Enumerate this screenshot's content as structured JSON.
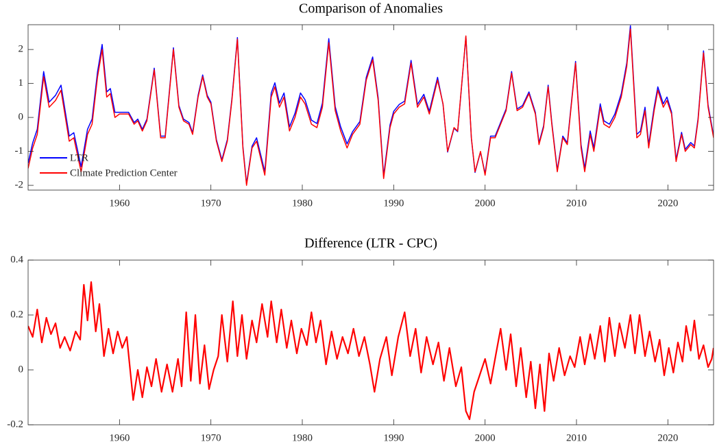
{
  "chart_data": [
    {
      "type": "line",
      "title": "Comparison of Anomalies",
      "x": [
        1950.0,
        1950.5,
        1951.0,
        1951.7,
        1952.3,
        1953.0,
        1953.6,
        1954.5,
        1955.0,
        1955.8,
        1956.5,
        1957.0,
        1957.6,
        1958.1,
        1958.6,
        1959.0,
        1959.5,
        1960.0,
        1961.0,
        1961.6,
        1962.0,
        1962.5,
        1963.0,
        1963.8,
        1964.5,
        1965.0,
        1965.9,
        1966.5,
        1967.0,
        1967.6,
        1968.0,
        1968.6,
        1969.1,
        1969.6,
        1970.0,
        1970.6,
        1971.2,
        1971.8,
        1972.3,
        1972.9,
        1973.5,
        1973.9,
        1974.5,
        1975.0,
        1975.9,
        1976.6,
        1977.0,
        1977.5,
        1978.0,
        1978.6,
        1979.2,
        1979.8,
        1980.3,
        1981.0,
        1981.6,
        1982.2,
        1982.9,
        1983.6,
        1984.2,
        1984.9,
        1985.5,
        1986.3,
        1987.0,
        1987.7,
        1988.3,
        1988.9,
        1989.6,
        1990.0,
        1990.6,
        1991.2,
        1991.9,
        1992.6,
        1993.3,
        1993.9,
        1994.8,
        1995.4,
        1995.9,
        1996.6,
        1997.0,
        1997.9,
        1998.5,
        1998.9,
        1999.5,
        2000.0,
        2000.6,
        2001.1,
        2001.7,
        2002.3,
        2002.9,
        2003.5,
        2004.1,
        2004.8,
        2005.5,
        2005.9,
        2006.4,
        2006.9,
        2007.3,
        2007.9,
        2008.5,
        2009.0,
        2009.9,
        2010.5,
        2010.9,
        2011.5,
        2011.9,
        2012.6,
        2013.0,
        2013.6,
        2014.2,
        2014.9,
        2015.5,
        2015.9,
        2016.6,
        2017.0,
        2017.5,
        2017.9,
        2018.5,
        2018.9,
        2019.5,
        2019.9,
        2020.4,
        2020.9,
        2021.5,
        2021.9,
        2022.5,
        2022.9,
        2023.3,
        2023.9,
        2024.4,
        2025.0
      ],
      "series": [
        {
          "name": "LTR",
          "color": "#0000ff",
          "values": [
            -1.35,
            -0.75,
            -0.35,
            1.35,
            0.45,
            0.65,
            0.95,
            -0.55,
            -0.45,
            -1.45,
            -0.35,
            -0.05,
            1.35,
            2.15,
            0.75,
            0.85,
            0.15,
            0.15,
            0.15,
            -0.15,
            -0.05,
            -0.35,
            -0.05,
            1.45,
            -0.55,
            -0.55,
            2.05,
            0.35,
            -0.05,
            -0.15,
            -0.45,
            0.65,
            1.25,
            0.65,
            0.45,
            -0.65,
            -1.25,
            -0.65,
            0.55,
            2.35,
            -0.85,
            -1.95,
            -0.85,
            -0.6,
            -1.6,
            0.72,
            1.02,
            0.42,
            0.72,
            -0.28,
            0.12,
            0.72,
            0.52,
            -0.08,
            -0.18,
            0.42,
            2.32,
            0.32,
            -0.28,
            -0.78,
            -0.42,
            -0.12,
            1.18,
            1.78,
            0.58,
            -1.72,
            -0.22,
            0.18,
            0.38,
            0.48,
            1.68,
            0.38,
            0.68,
            0.18,
            1.18,
            0.38,
            -1.02,
            -0.32,
            -0.42,
            2.38,
            -0.62,
            -1.62,
            -1.02,
            -1.65,
            -0.55,
            -0.55,
            -0.15,
            0.25,
            1.35,
            0.25,
            0.35,
            0.75,
            0.15,
            -0.75,
            -0.25,
            0.95,
            -0.15,
            -1.55,
            -0.55,
            -0.75,
            1.65,
            -0.8,
            -1.5,
            -0.4,
            -0.9,
            0.4,
            -0.1,
            -0.2,
            0.1,
            0.7,
            1.6,
            2.7,
            -0.5,
            -0.4,
            0.3,
            -0.8,
            0.3,
            0.9,
            0.4,
            0.6,
            0.16,
            -1.24,
            -0.44,
            -0.94,
            -0.74,
            -0.84,
            -0.04,
            1.96,
            0.36,
            -0.54
          ]
        },
        {
          "name": "Climate Prediction Center",
          "color": "#ff0000",
          "values": [
            -1.5,
            -0.9,
            -0.5,
            1.2,
            0.3,
            0.5,
            0.8,
            -0.7,
            -0.6,
            -1.6,
            -0.5,
            -0.2,
            1.2,
            2.0,
            0.6,
            0.7,
            0.0,
            0.1,
            0.1,
            -0.2,
            -0.1,
            -0.4,
            -0.1,
            1.4,
            -0.6,
            -0.6,
            2.0,
            0.3,
            -0.1,
            -0.2,
            -0.5,
            0.6,
            1.2,
            0.6,
            0.4,
            -0.7,
            -1.3,
            -0.7,
            0.5,
            2.3,
            -0.9,
            -2.0,
            -0.9,
            -0.7,
            -1.7,
            0.6,
            0.9,
            0.3,
            0.6,
            -0.4,
            0.0,
            0.6,
            0.4,
            -0.2,
            -0.3,
            0.3,
            2.2,
            0.2,
            -0.4,
            -0.9,
            -0.5,
            -0.2,
            1.1,
            1.7,
            0.5,
            -1.8,
            -0.3,
            0.1,
            0.3,
            0.4,
            1.6,
            0.3,
            0.6,
            0.1,
            1.1,
            0.4,
            -1.0,
            -0.3,
            -0.4,
            2.4,
            -0.6,
            -1.6,
            -1.0,
            -1.7,
            -0.6,
            -0.6,
            -0.2,
            0.2,
            1.3,
            0.2,
            0.3,
            0.7,
            0.1,
            -0.8,
            -0.3,
            0.9,
            -0.2,
            -1.6,
            -0.6,
            -0.8,
            1.6,
            -0.9,
            -1.6,
            -0.5,
            -1.0,
            0.3,
            -0.2,
            -0.3,
            0.0,
            0.6,
            1.5,
            2.6,
            -0.6,
            -0.5,
            0.2,
            -0.9,
            0.2,
            0.8,
            0.3,
            0.5,
            0.1,
            -1.3,
            -0.5,
            -1.0,
            -0.8,
            -0.9,
            -0.1,
            1.9,
            0.3,
            -0.6
          ]
        }
      ],
      "xlim": [
        1950,
        2025
      ],
      "xticks": [
        1960,
        1970,
        1980,
        1990,
        2000,
        2010,
        2020
      ],
      "ylim": [
        -2.14,
        2.73
      ],
      "yticks": [
        -2,
        -1,
        0,
        1,
        2
      ],
      "legend": "lower left"
    },
    {
      "type": "line",
      "title": "Difference (LTR - CPC)",
      "x": [
        1950.0,
        1950.5,
        1951.0,
        1951.5,
        1952.0,
        1952.5,
        1953.0,
        1953.5,
        1954.0,
        1954.6,
        1955.2,
        1955.7,
        1956.1,
        1956.5,
        1956.9,
        1957.4,
        1957.8,
        1958.3,
        1958.8,
        1959.3,
        1959.8,
        1960.3,
        1960.8,
        1961.5,
        1962.0,
        1962.5,
        1963.0,
        1963.5,
        1964.0,
        1964.6,
        1965.2,
        1965.8,
        1966.4,
        1966.8,
        1967.3,
        1967.8,
        1968.3,
        1968.8,
        1969.3,
        1969.8,
        1970.3,
        1970.8,
        1971.2,
        1971.8,
        1972.4,
        1972.9,
        1973.4,
        1973.9,
        1974.5,
        1975.0,
        1975.6,
        1976.2,
        1976.6,
        1977.2,
        1977.7,
        1978.3,
        1978.8,
        1979.4,
        1979.9,
        1980.5,
        1981.0,
        1981.5,
        1982.0,
        1982.6,
        1983.2,
        1983.8,
        1984.4,
        1985.0,
        1985.6,
        1986.2,
        1986.8,
        1987.4,
        1987.9,
        1988.5,
        1989.2,
        1989.8,
        1990.5,
        1991.2,
        1991.8,
        1992.4,
        1993.0,
        1993.6,
        1994.3,
        1994.9,
        1995.5,
        1996.1,
        1996.8,
        1997.4,
        1997.9,
        1998.3,
        1998.8,
        1999.5,
        2000.0,
        2000.6,
        2001.2,
        2001.7,
        2002.3,
        2002.8,
        2003.4,
        2003.9,
        2004.5,
        2005.0,
        2005.5,
        2006.0,
        2006.5,
        2007.0,
        2007.5,
        2008.1,
        2008.7,
        2009.3,
        2009.8,
        2010.4,
        2010.9,
        2011.5,
        2012.0,
        2012.6,
        2013.1,
        2013.6,
        2014.2,
        2014.7,
        2015.3,
        2015.9,
        2016.4,
        2016.9,
        2017.5,
        2018.0,
        2018.6,
        2019.1,
        2019.6,
        2020.1,
        2020.6,
        2021.1,
        2021.6,
        2022.0,
        2022.5,
        2022.9,
        2023.4,
        2023.9,
        2024.4,
        2024.8,
        2025.0
      ],
      "series": [
        {
          "color": "#ff0000",
          "values": [
            0.16,
            0.12,
            0.22,
            0.1,
            0.19,
            0.13,
            0.17,
            0.08,
            0.12,
            0.07,
            0.14,
            0.11,
            0.31,
            0.18,
            0.32,
            0.14,
            0.24,
            0.05,
            0.15,
            0.06,
            0.14,
            0.08,
            0.12,
            -0.11,
            0.0,
            -0.1,
            0.01,
            -0.06,
            0.04,
            -0.08,
            0.02,
            -0.08,
            0.04,
            -0.06,
            0.21,
            -0.04,
            0.2,
            -0.05,
            0.09,
            -0.07,
            0.0,
            0.05,
            0.2,
            0.03,
            0.25,
            0.05,
            0.2,
            0.04,
            0.18,
            0.1,
            0.24,
            0.12,
            0.25,
            0.1,
            0.22,
            0.08,
            0.18,
            0.06,
            0.15,
            0.09,
            0.21,
            0.1,
            0.18,
            0.02,
            0.14,
            0.04,
            0.12,
            0.06,
            0.15,
            0.05,
            0.12,
            0.02,
            -0.08,
            0.04,
            0.12,
            -0.02,
            0.12,
            0.21,
            0.05,
            0.15,
            -0.01,
            0.12,
            0.02,
            0.1,
            -0.04,
            0.08,
            -0.06,
            0.01,
            -0.15,
            -0.18,
            -0.08,
            -0.01,
            0.04,
            -0.05,
            0.06,
            0.15,
            0.0,
            0.13,
            -0.06,
            0.08,
            -0.1,
            0.03,
            -0.14,
            0.02,
            -0.15,
            0.06,
            -0.04,
            0.08,
            -0.02,
            0.05,
            0.01,
            0.12,
            0.02,
            0.13,
            0.04,
            0.16,
            0.03,
            0.19,
            0.05,
            0.17,
            0.08,
            0.2,
            0.06,
            0.2,
            0.05,
            0.14,
            0.03,
            0.11,
            -0.02,
            0.08,
            -0.01,
            0.1,
            0.03,
            0.16,
            0.07,
            0.18,
            0.04,
            0.09,
            0.01,
            0.04,
            0.08
          ]
        }
      ],
      "xlim": [
        1950,
        2025
      ],
      "xticks": [
        1960,
        1970,
        1980,
        1990,
        2000,
        2010,
        2020
      ],
      "ylim": [
        -0.2,
        0.4
      ],
      "yticks": [
        -0.2,
        0,
        0.2,
        0.4
      ]
    }
  ]
}
